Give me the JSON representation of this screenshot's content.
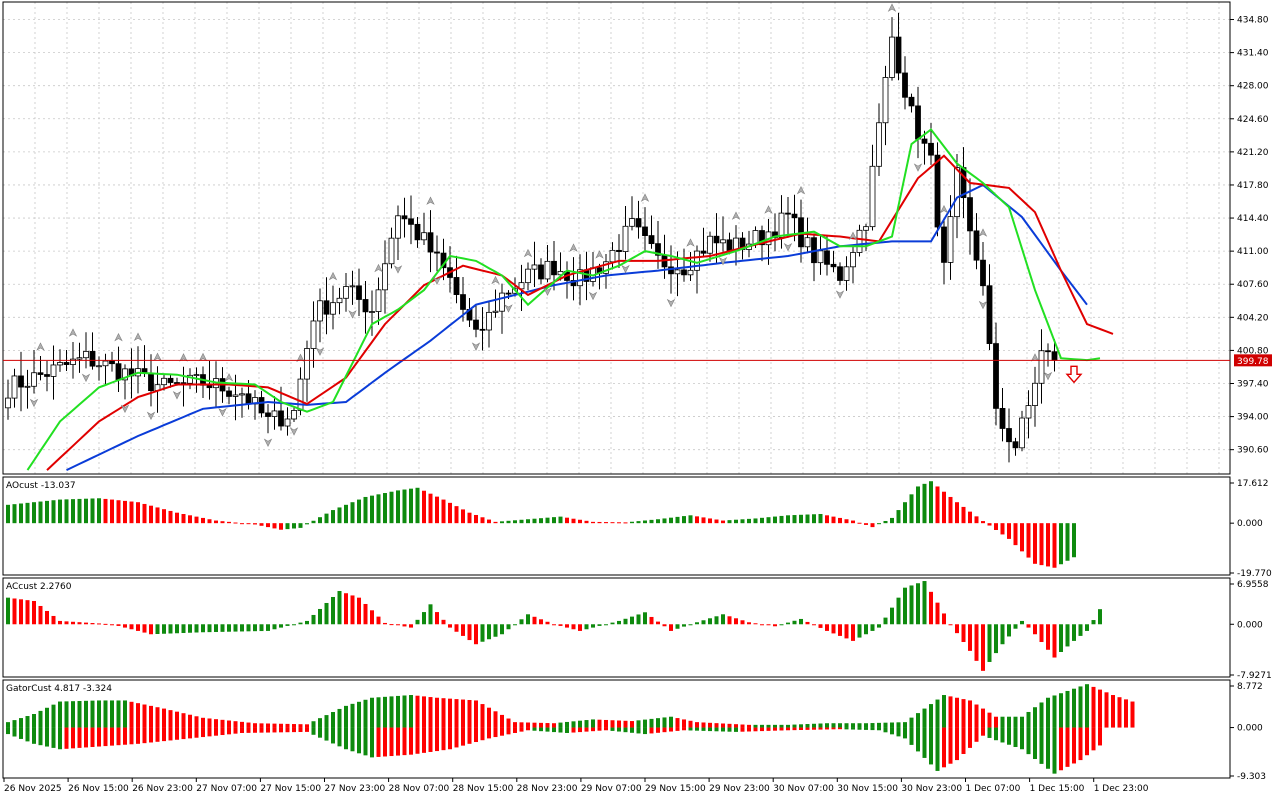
{
  "chart_data": [
    {
      "type": "candlestick",
      "panel": "price",
      "y_axis_labels": [
        "434.80",
        "431.40",
        "428.00",
        "424.60",
        "421.20",
        "417.80",
        "414.40",
        "411.00",
        "407.60",
        "404.20",
        "400.80",
        "397.40",
        "394.00",
        "390.60"
      ],
      "ylim": [
        388.1,
        436.6
      ],
      "current_price": 399.78,
      "current_price_label": "399.78",
      "x_axis_labels": [
        "26 Nov 2025",
        "26 Nov 15:00",
        "26 Nov 23:00",
        "27 Nov 07:00",
        "27 Nov 15:00",
        "27 Nov 23:00",
        "28 Nov 07:00",
        "28 Nov 15:00",
        "28 Nov 23:00",
        "29 Nov 07:00",
        "29 Nov 15:00",
        "29 Nov 23:00",
        "30 Nov 07:00",
        "30 Nov 15:00",
        "30 Nov 23:00",
        "1 Dec 07:00",
        "1 Dec 15:00",
        "1 Dec 23:00"
      ],
      "close_anchors": [
        [
          0,
          397.0
        ],
        [
          6,
          398.5
        ],
        [
          12,
          400.0
        ],
        [
          18,
          398.5
        ],
        [
          24,
          397.0
        ],
        [
          30,
          397.5
        ],
        [
          36,
          396.5
        ],
        [
          40,
          393.5
        ],
        [
          44,
          394.5
        ],
        [
          47,
          404.5
        ],
        [
          52,
          407.0
        ],
        [
          56,
          405.0
        ],
        [
          60,
          415.0
        ],
        [
          64,
          412.0
        ],
        [
          68,
          408.0
        ],
        [
          72,
          402.0
        ],
        [
          76,
          406.5
        ],
        [
          80,
          408.5
        ],
        [
          84,
          409.5
        ],
        [
          88,
          408.0
        ],
        [
          92,
          410.0
        ],
        [
          96,
          413.5
        ],
        [
          100,
          410.0
        ],
        [
          104,
          409.5
        ],
        [
          108,
          412.0
        ],
        [
          112,
          411.5
        ],
        [
          116,
          412.5
        ],
        [
          120,
          414.5
        ],
        [
          124,
          410.5
        ],
        [
          128,
          408.5
        ],
        [
          132,
          414.5
        ],
        [
          136,
          433.0
        ],
        [
          139,
          425.0
        ],
        [
          142,
          420.0
        ],
        [
          144,
          409.0
        ],
        [
          146,
          418.5
        ],
        [
          148,
          412.5
        ],
        [
          150,
          408.0
        ],
        [
          152,
          394.0
        ],
        [
          155,
          391.0
        ],
        [
          157,
          395.0
        ],
        [
          159,
          400.5
        ],
        [
          161,
          399.8
        ]
      ],
      "alligator": {
        "jaw_color": "#0a3cd8",
        "teeth_color": "#e00000",
        "lips_color": "#22e022",
        "jaw": [
          [
            9,
            388.5
          ],
          [
            20,
            392.0
          ],
          [
            30,
            394.8
          ],
          [
            40,
            395.5
          ],
          [
            46,
            395.2
          ],
          [
            52,
            395.5
          ],
          [
            58,
            398.5
          ],
          [
            65,
            401.8
          ],
          [
            72,
            405.5
          ],
          [
            78,
            406.5
          ],
          [
            84,
            407.5
          ],
          [
            92,
            408.5
          ],
          [
            100,
            409.0
          ],
          [
            110,
            409.8
          ],
          [
            120,
            410.5
          ],
          [
            128,
            411.5
          ],
          [
            136,
            412.0
          ],
          [
            142,
            412.0
          ],
          [
            146,
            416.5
          ],
          [
            150,
            417.8
          ],
          [
            156,
            414.5
          ],
          [
            162,
            409.0
          ],
          [
            166,
            405.5
          ]
        ],
        "teeth": [
          [
            6,
            388.5
          ],
          [
            14,
            393.5
          ],
          [
            20,
            396.0
          ],
          [
            26,
            397.3
          ],
          [
            34,
            397.3
          ],
          [
            40,
            397.0
          ],
          [
            46,
            395.3
          ],
          [
            52,
            398.0
          ],
          [
            58,
            403.5
          ],
          [
            64,
            407.5
          ],
          [
            70,
            409.5
          ],
          [
            76,
            408.5
          ],
          [
            80,
            406.5
          ],
          [
            86,
            408.5
          ],
          [
            94,
            410.0
          ],
          [
            100,
            410.0
          ],
          [
            108,
            410.5
          ],
          [
            114,
            411.5
          ],
          [
            122,
            412.8
          ],
          [
            128,
            412.5
          ],
          [
            134,
            412.0
          ],
          [
            140,
            418.5
          ],
          [
            144,
            420.8
          ],
          [
            148,
            418.0
          ],
          [
            154,
            417.5
          ],
          [
            158,
            415.0
          ],
          [
            162,
            409.0
          ],
          [
            166,
            403.5
          ],
          [
            170,
            402.5
          ]
        ],
        "lips": [
          [
            3,
            388.5
          ],
          [
            8,
            393.5
          ],
          [
            14,
            397.0
          ],
          [
            20,
            398.5
          ],
          [
            26,
            398.3
          ],
          [
            32,
            397.5
          ],
          [
            38,
            397.3
          ],
          [
            42,
            395.5
          ],
          [
            46,
            394.5
          ],
          [
            50,
            395.5
          ],
          [
            56,
            403.5
          ],
          [
            60,
            405.0
          ],
          [
            64,
            407.0
          ],
          [
            68,
            410.5
          ],
          [
            72,
            410.0
          ],
          [
            76,
            408.5
          ],
          [
            80,
            405.5
          ],
          [
            86,
            409.0
          ],
          [
            90,
            408.5
          ],
          [
            94,
            409.5
          ],
          [
            98,
            411.0
          ],
          [
            102,
            410.5
          ],
          [
            106,
            409.8
          ],
          [
            112,
            411.0
          ],
          [
            118,
            412.5
          ],
          [
            124,
            413.0
          ],
          [
            128,
            411.5
          ],
          [
            132,
            411.5
          ],
          [
            136,
            412.5
          ],
          [
            139,
            422.0
          ],
          [
            142,
            423.5
          ],
          [
            146,
            420.0
          ],
          [
            150,
            418.0
          ],
          [
            154,
            415.5
          ],
          [
            158,
            407.0
          ],
          [
            162,
            400.0
          ],
          [
            166,
            399.8
          ],
          [
            168,
            400.0
          ]
        ]
      },
      "fractals_up_at": [
        5,
        10,
        17,
        20,
        23,
        27,
        30,
        34,
        45,
        50,
        57,
        65,
        75,
        80,
        87,
        91,
        98,
        105,
        112,
        117,
        122,
        130,
        136,
        144,
        150,
        158
      ],
      "fractals_down_at": [
        4,
        12,
        18,
        22,
        26,
        33,
        40,
        44,
        48,
        53,
        60,
        66,
        72,
        77,
        83,
        90,
        95,
        102,
        110,
        120,
        128,
        140,
        150,
        160
      ],
      "signal_arrow": {
        "direction": "down",
        "color": "#e00000"
      }
    },
    {
      "type": "bar",
      "panel": "oscillator",
      "label": "AOcust -13.037",
      "y_axis_labels": [
        "17.612",
        "0.000",
        "-19.770"
      ],
      "ylim": [
        -19.77,
        17.612
      ],
      "up_color": "#0e8a0e",
      "down_color": "#ff0000",
      "value_anchors": [
        [
          0,
          7.0
        ],
        [
          8,
          9.0
        ],
        [
          14,
          9.5
        ],
        [
          20,
          8.0
        ],
        [
          26,
          4.0
        ],
        [
          32,
          1.0
        ],
        [
          38,
          -0.5
        ],
        [
          42,
          -2.5
        ],
        [
          45,
          -1.8
        ],
        [
          50,
          5.0
        ],
        [
          55,
          10.0
        ],
        [
          60,
          12.5
        ],
        [
          63,
          13.5
        ],
        [
          67,
          9.0
        ],
        [
          71,
          4.0
        ],
        [
          75,
          0.5
        ],
        [
          80,
          1.5
        ],
        [
          85,
          2.5
        ],
        [
          90,
          0.5
        ],
        [
          95,
          0.3
        ],
        [
          100,
          1.5
        ],
        [
          105,
          3.0
        ],
        [
          110,
          1.0
        ],
        [
          115,
          1.8
        ],
        [
          120,
          3.0
        ],
        [
          125,
          3.5
        ],
        [
          130,
          1.0
        ],
        [
          133,
          -1.5
        ],
        [
          136,
          2.0
        ],
        [
          140,
          14.0
        ],
        [
          142,
          16.0
        ],
        [
          146,
          8.0
        ],
        [
          150,
          0.8
        ],
        [
          154,
          -6.0
        ],
        [
          158,
          -15.5
        ],
        [
          161,
          -17.0
        ],
        [
          164,
          -13.0
        ]
      ]
    },
    {
      "type": "bar",
      "panel": "oscillator",
      "label": "ACcust 2.2760",
      "y_axis_labels": [
        "6.9558",
        "0.000",
        "-7.9271"
      ],
      "ylim": [
        -7.9271,
        6.9558
      ],
      "up_color": "#0e8a0e",
      "down_color": "#ff0000",
      "value_anchors": [
        [
          0,
          4.0
        ],
        [
          4,
          3.5
        ],
        [
          8,
          0.5
        ],
        [
          16,
          0.0
        ],
        [
          22,
          -1.5
        ],
        [
          30,
          -1.2
        ],
        [
          40,
          -1.0
        ],
        [
          46,
          0.5
        ],
        [
          51,
          5.0
        ],
        [
          54,
          4.0
        ],
        [
          58,
          0.2
        ],
        [
          62,
          -0.5
        ],
        [
          65,
          3.0
        ],
        [
          68,
          -0.5
        ],
        [
          72,
          -3.0
        ],
        [
          76,
          -1.5
        ],
        [
          80,
          1.5
        ],
        [
          84,
          0.0
        ],
        [
          88,
          -1.0
        ],
        [
          94,
          0.5
        ],
        [
          98,
          1.8
        ],
        [
          102,
          -1.0
        ],
        [
          106,
          0.3
        ],
        [
          110,
          1.5
        ],
        [
          114,
          0.3
        ],
        [
          118,
          -0.3
        ],
        [
          122,
          0.8
        ],
        [
          126,
          -1.0
        ],
        [
          130,
          -2.5
        ],
        [
          134,
          -0.5
        ],
        [
          138,
          5.5
        ],
        [
          141,
          6.5
        ],
        [
          145,
          0.0
        ],
        [
          148,
          -4.0
        ],
        [
          150,
          -7.0
        ],
        [
          153,
          -3.0
        ],
        [
          156,
          0.5
        ],
        [
          158,
          -1.5
        ],
        [
          161,
          -5.0
        ],
        [
          164,
          -2.5
        ],
        [
          166,
          -1.0
        ],
        [
          168,
          2.27
        ]
      ]
    },
    {
      "type": "bar",
      "panel": "oscillator",
      "label": "GatorCust 4.817 -3.324",
      "y_axis_labels": [
        "8.772",
        "0.000",
        "-9.303"
      ],
      "ylim": [
        -9.303,
        8.772
      ],
      "up_color": "#0e8a0e",
      "down_color": "#ff0000",
      "upper_anchors": [
        [
          0,
          1.0
        ],
        [
          4,
          2.5
        ],
        [
          8,
          4.8
        ],
        [
          14,
          5.0
        ],
        [
          18,
          5.0
        ],
        [
          24,
          3.5
        ],
        [
          30,
          1.8
        ],
        [
          38,
          0.8
        ],
        [
          46,
          0.6
        ],
        [
          52,
          4.0
        ],
        [
          56,
          5.5
        ],
        [
          62,
          6.0
        ],
        [
          66,
          5.5
        ],
        [
          72,
          5.0
        ],
        [
          78,
          1.0
        ],
        [
          84,
          0.8
        ],
        [
          90,
          1.5
        ],
        [
          96,
          1.2
        ],
        [
          102,
          2.0
        ],
        [
          106,
          1.0
        ],
        [
          114,
          0.5
        ],
        [
          120,
          0.5
        ],
        [
          126,
          0.8
        ],
        [
          132,
          0.8
        ],
        [
          138,
          1.0
        ],
        [
          144,
          6.0
        ],
        [
          148,
          5.0
        ],
        [
          152,
          2.0
        ],
        [
          156,
          2.0
        ],
        [
          160,
          5.5
        ],
        [
          166,
          8.0
        ],
        [
          170,
          6.0
        ],
        [
          173,
          4.8
        ]
      ],
      "lower_anchors": [
        [
          0,
          -1.2
        ],
        [
          4,
          -3.0
        ],
        [
          8,
          -4.0
        ],
        [
          14,
          -3.5
        ],
        [
          20,
          -3.0
        ],
        [
          28,
          -2.0
        ],
        [
          36,
          -1.0
        ],
        [
          46,
          -0.8
        ],
        [
          52,
          -4.0
        ],
        [
          56,
          -5.5
        ],
        [
          62,
          -5.0
        ],
        [
          68,
          -4.0
        ],
        [
          74,
          -2.0
        ],
        [
          80,
          -0.5
        ],
        [
          86,
          -1.0
        ],
        [
          92,
          -0.5
        ],
        [
          98,
          -1.2
        ],
        [
          104,
          -0.5
        ],
        [
          112,
          -0.8
        ],
        [
          120,
          -0.5
        ],
        [
          128,
          -0.3
        ],
        [
          134,
          -0.5
        ],
        [
          138,
          -2.0
        ],
        [
          143,
          -8.0
        ],
        [
          146,
          -6.0
        ],
        [
          150,
          -1.5
        ],
        [
          156,
          -4.0
        ],
        [
          161,
          -8.5
        ],
        [
          165,
          -6.0
        ],
        [
          168,
          -3.3
        ]
      ]
    }
  ]
}
